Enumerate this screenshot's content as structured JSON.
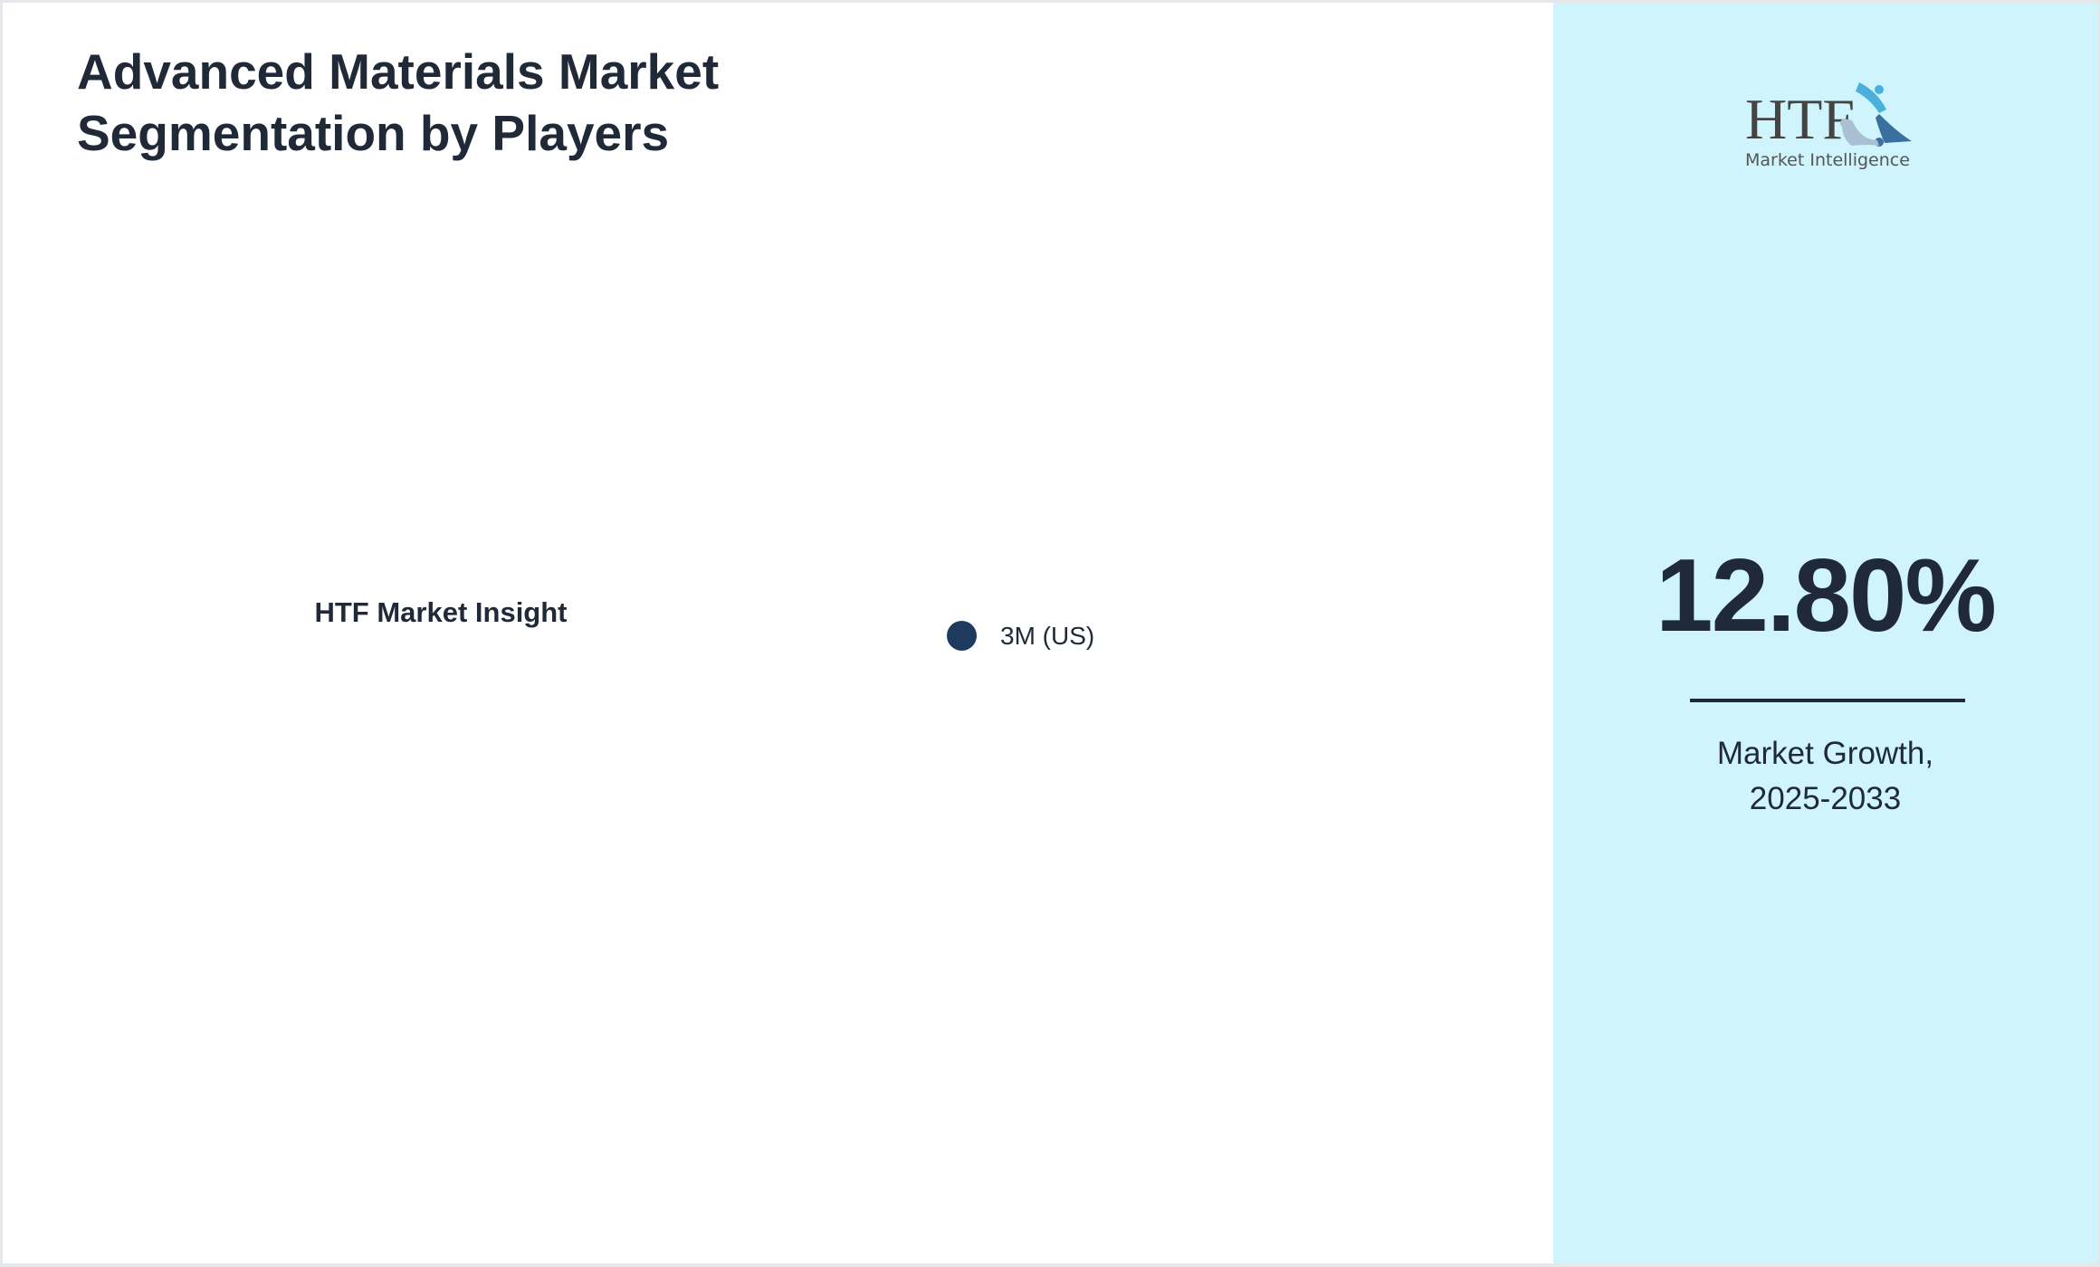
{
  "title": "Advanced Materials Market Segmentation by Players",
  "chart_data": {
    "type": "pie",
    "title": "Advanced Materials Market Segmentation by Players",
    "center_label": "HTF Market Insight",
    "categories": [
      "3M (US)"
    ],
    "legend": [
      {
        "name": "3M (US)",
        "color": "#1e3a5f"
      }
    ],
    "legend_placement": "right"
  },
  "side": {
    "logo_text": "HTF",
    "logo_subtext": "Market Intelligence",
    "growth_value": "12.80%",
    "growth_label_line1": "Market Growth,",
    "growth_label_line2": "2025-2033",
    "background": "#cff4fc"
  }
}
